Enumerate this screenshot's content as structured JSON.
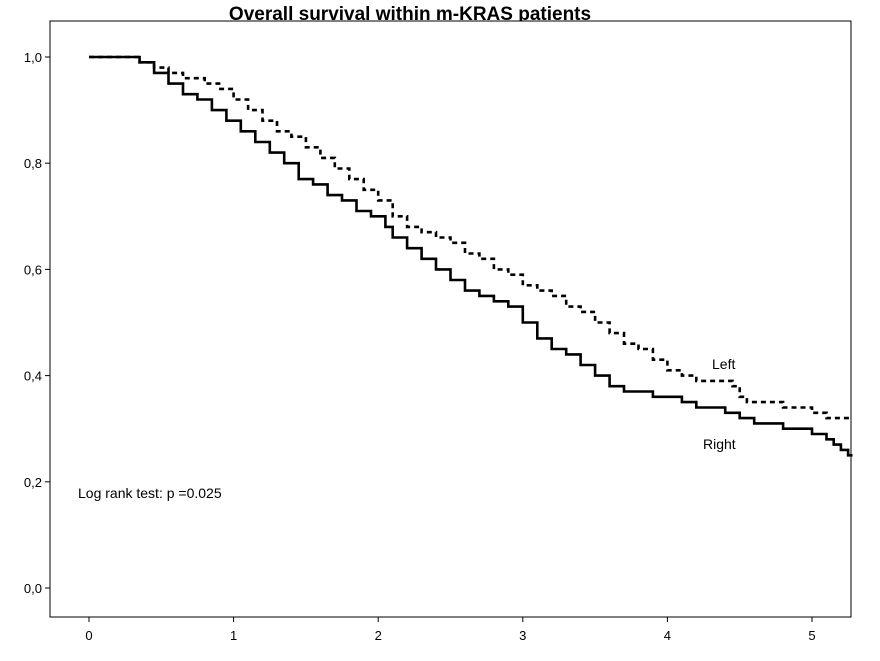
{
  "chart_data": {
    "type": "line",
    "title": "Overall survival within m-KRAS patients",
    "xlabel": "",
    "ylabel": "",
    "xlim": [
      0,
      5.28
    ],
    "ylim": [
      0,
      1.0
    ],
    "x_ticks": [
      "0",
      "1",
      "2",
      "3",
      "4",
      "5"
    ],
    "y_ticks": [
      "0,0",
      "0,2",
      "0,4",
      "0,6",
      "0,8",
      "1,0"
    ],
    "annotation": "Log rank test: p =0.025",
    "grid": false,
    "series": [
      {
        "name": "Left",
        "style": "dashed",
        "color": "#000000",
        "points": [
          [
            0,
            1.0
          ],
          [
            0.25,
            1.0
          ],
          [
            0.35,
            0.99
          ],
          [
            0.45,
            0.98
          ],
          [
            0.55,
            0.97
          ],
          [
            0.65,
            0.96
          ],
          [
            0.8,
            0.95
          ],
          [
            0.9,
            0.94
          ],
          [
            1.0,
            0.92
          ],
          [
            1.1,
            0.9
          ],
          [
            1.2,
            0.88
          ],
          [
            1.3,
            0.86
          ],
          [
            1.4,
            0.85
          ],
          [
            1.5,
            0.83
          ],
          [
            1.6,
            0.81
          ],
          [
            1.7,
            0.79
          ],
          [
            1.8,
            0.77
          ],
          [
            1.9,
            0.75
          ],
          [
            2.0,
            0.73
          ],
          [
            2.1,
            0.7
          ],
          [
            2.2,
            0.68
          ],
          [
            2.3,
            0.67
          ],
          [
            2.4,
            0.66
          ],
          [
            2.5,
            0.65
          ],
          [
            2.6,
            0.63
          ],
          [
            2.7,
            0.62
          ],
          [
            2.8,
            0.6
          ],
          [
            2.9,
            0.59
          ],
          [
            3.0,
            0.57
          ],
          [
            3.1,
            0.56
          ],
          [
            3.2,
            0.55
          ],
          [
            3.3,
            0.53
          ],
          [
            3.4,
            0.52
          ],
          [
            3.5,
            0.5
          ],
          [
            3.6,
            0.48
          ],
          [
            3.7,
            0.46
          ],
          [
            3.8,
            0.45
          ],
          [
            3.9,
            0.43
          ],
          [
            4.0,
            0.41
          ],
          [
            4.1,
            0.4
          ],
          [
            4.2,
            0.39
          ],
          [
            4.35,
            0.39
          ],
          [
            4.45,
            0.38
          ],
          [
            4.5,
            0.36
          ],
          [
            4.55,
            0.35
          ],
          [
            4.8,
            0.34
          ],
          [
            5.0,
            0.33
          ],
          [
            5.1,
            0.32
          ],
          [
            5.28,
            0.32
          ]
        ],
        "label": "Left"
      },
      {
        "name": "Right",
        "style": "solid",
        "color": "#000000",
        "points": [
          [
            0,
            1.0
          ],
          [
            0.25,
            1.0
          ],
          [
            0.35,
            0.99
          ],
          [
            0.45,
            0.97
          ],
          [
            0.55,
            0.95
          ],
          [
            0.65,
            0.93
          ],
          [
            0.75,
            0.92
          ],
          [
            0.85,
            0.9
          ],
          [
            0.95,
            0.88
          ],
          [
            1.05,
            0.86
          ],
          [
            1.15,
            0.84
          ],
          [
            1.25,
            0.82
          ],
          [
            1.35,
            0.8
          ],
          [
            1.45,
            0.77
          ],
          [
            1.55,
            0.76
          ],
          [
            1.65,
            0.74
          ],
          [
            1.75,
            0.73
          ],
          [
            1.85,
            0.71
          ],
          [
            1.95,
            0.7
          ],
          [
            2.05,
            0.68
          ],
          [
            2.1,
            0.66
          ],
          [
            2.2,
            0.64
          ],
          [
            2.3,
            0.62
          ],
          [
            2.4,
            0.6
          ],
          [
            2.5,
            0.58
          ],
          [
            2.6,
            0.56
          ],
          [
            2.7,
            0.55
          ],
          [
            2.8,
            0.54
          ],
          [
            2.9,
            0.53
          ],
          [
            3.0,
            0.5
          ],
          [
            3.1,
            0.47
          ],
          [
            3.2,
            0.45
          ],
          [
            3.3,
            0.44
          ],
          [
            3.4,
            0.42
          ],
          [
            3.5,
            0.4
          ],
          [
            3.6,
            0.38
          ],
          [
            3.7,
            0.37
          ],
          [
            3.8,
            0.37
          ],
          [
            3.9,
            0.36
          ],
          [
            4.0,
            0.36
          ],
          [
            4.1,
            0.35
          ],
          [
            4.2,
            0.34
          ],
          [
            4.3,
            0.34
          ],
          [
            4.4,
            0.33
          ],
          [
            4.5,
            0.32
          ],
          [
            4.6,
            0.31
          ],
          [
            4.7,
            0.31
          ],
          [
            4.8,
            0.3
          ],
          [
            4.9,
            0.3
          ],
          [
            5.0,
            0.29
          ],
          [
            5.1,
            0.28
          ],
          [
            5.15,
            0.27
          ],
          [
            5.2,
            0.26
          ],
          [
            5.25,
            0.25
          ],
          [
            5.28,
            0.25
          ]
        ],
        "label": "Right"
      }
    ]
  }
}
